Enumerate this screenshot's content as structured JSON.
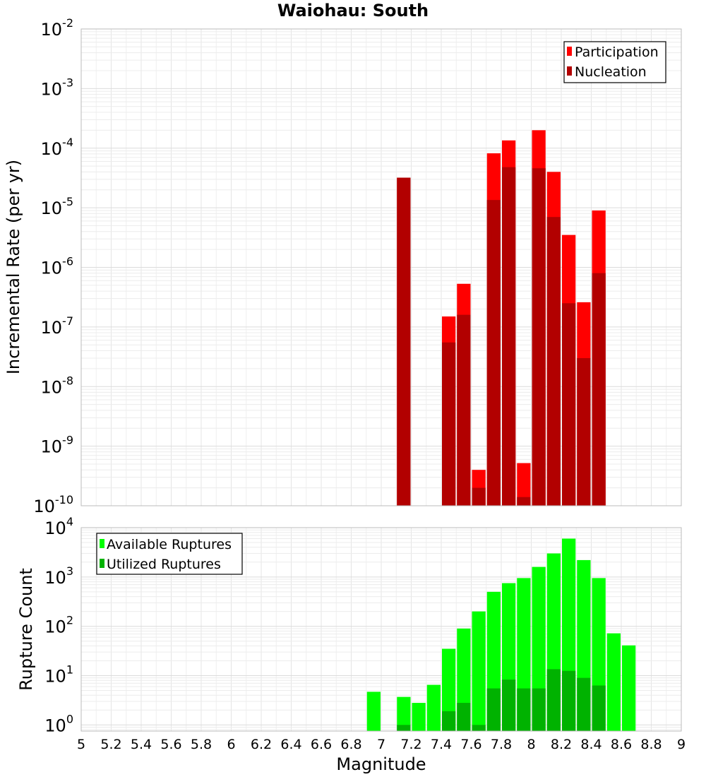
{
  "chart_data": [
    {
      "type": "bar",
      "title": "Waiohau: South",
      "xlabel": "",
      "ylabel": "Incremental Rate (per yr)",
      "yscale": "log",
      "xlim": [
        5,
        9
      ],
      "ylim": [
        1e-10,
        0.01
      ],
      "y_tick_exponents": [
        "-10",
        "-9",
        "-8",
        "-7",
        "-6",
        "-5",
        "-4",
        "-3",
        "-2"
      ],
      "bin_width": 0.1,
      "legend_position": "top-right",
      "grid": true,
      "series": [
        {
          "name": "Participation",
          "color": "#ff0000",
          "x": [
            7.15,
            7.45,
            7.55,
            7.65,
            7.75,
            7.85,
            7.95,
            8.05,
            8.15,
            8.25,
            8.35,
            8.45
          ],
          "values": [
            3.2e-05,
            1.5e-07,
            5.3e-07,
            4e-10,
            8.2e-05,
            0.000135,
            5.2e-10,
            0.0002,
            4e-05,
            3.5e-06,
            2.6e-07,
            9e-06
          ]
        },
        {
          "name": "Nucleation",
          "color": "#b20000",
          "x": [
            7.15,
            7.45,
            7.55,
            7.65,
            7.75,
            7.85,
            7.95,
            8.05,
            8.15,
            8.25,
            8.35,
            8.45
          ],
          "values": [
            3.2e-05,
            5.5e-08,
            1.6e-07,
            2e-10,
            1.35e-05,
            4.8e-05,
            1.4e-10,
            4.6e-05,
            7e-06,
            2.5e-07,
            3e-08,
            8e-07
          ]
        }
      ]
    },
    {
      "type": "bar",
      "title": "",
      "xlabel": "Magnitude",
      "ylabel": "Rupture Count",
      "yscale": "log",
      "xlim": [
        5,
        9
      ],
      "ylim": [
        0.75,
        10000
      ],
      "x_ticks": [
        "5",
        "5.2",
        "5.4",
        "5.6",
        "5.8",
        "6",
        "6.2",
        "6.4",
        "6.6",
        "6.8",
        "7",
        "7.2",
        "7.4",
        "7.6",
        "7.8",
        "8",
        "8.2",
        "8.4",
        "8.6",
        "8.8",
        "9"
      ],
      "y_tick_exponents": [
        "0",
        "1",
        "2",
        "3",
        "4"
      ],
      "bin_width": 0.1,
      "legend_position": "top-left",
      "grid": true,
      "series": [
        {
          "name": "Available Ruptures",
          "color": "#00ff00",
          "x": [
            6.95,
            7.15,
            7.25,
            7.35,
            7.45,
            7.55,
            7.65,
            7.75,
            7.85,
            7.95,
            8.05,
            8.15,
            8.25,
            8.35,
            8.45,
            8.55,
            8.65
          ],
          "values": [
            4.7,
            3.7,
            2.8,
            6.5,
            35,
            90,
            200,
            500,
            750,
            950,
            1600,
            3000,
            6000,
            2200,
            950,
            72,
            41
          ]
        },
        {
          "name": "Utilized Ruptures",
          "color": "#00b200",
          "x": [
            7.15,
            7.45,
            7.55,
            7.65,
            7.75,
            7.85,
            7.95,
            8.05,
            8.15,
            8.25,
            8.35,
            8.45
          ],
          "values": [
            1.0,
            1.9,
            2.8,
            1.0,
            5.5,
            8.3,
            5.5,
            5.5,
            13.5,
            12.5,
            9.0,
            6.3
          ]
        }
      ]
    }
  ]
}
